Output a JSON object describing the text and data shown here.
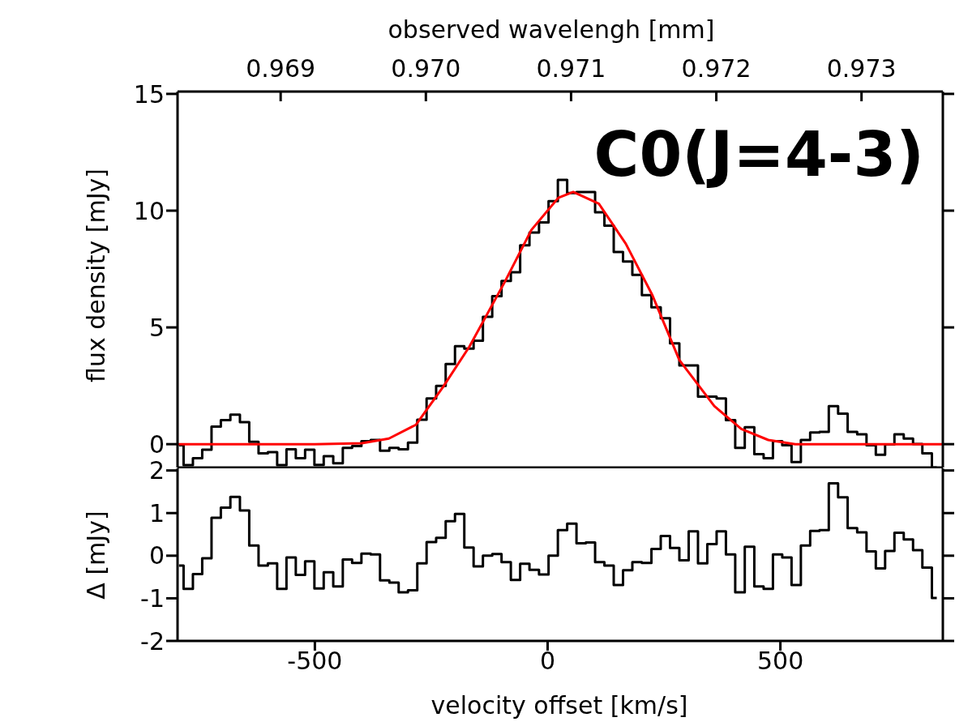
{
  "chart_data": [
    {
      "type": "step",
      "ylabel": "flux density [mJy]",
      "x2label": "observed wavelengh [mm]",
      "annotations": [
        "C0(J=4-3)"
      ],
      "x": [
        -792,
        -772,
        -752,
        -732,
        -712,
        -692,
        -671,
        -651,
        -631,
        -611,
        -591,
        -571,
        -551,
        -531,
        -511,
        -491,
        -471,
        -450,
        -430,
        -410,
        -390,
        -370,
        -350,
        -330,
        -310,
        -290,
        -270,
        -250,
        -229,
        -209,
        -189,
        -169,
        -149,
        -129,
        -109,
        -89,
        -69,
        -49,
        -29,
        -8,
        12,
        32,
        52,
        72,
        92,
        112,
        132,
        152,
        172,
        192,
        213,
        233,
        253,
        273,
        293,
        313,
        333,
        353,
        373,
        393,
        413,
        434,
        454,
        474,
        494,
        514,
        534,
        554,
        574,
        594,
        614,
        634,
        655,
        675,
        695,
        715,
        735,
        755,
        775,
        795,
        815,
        836
      ],
      "series": [
        {
          "color": "#000000",
          "values": [
            -0.05,
            -0.9,
            -0.6,
            -0.24,
            0.75,
            1.03,
            1.26,
            0.94,
            0.1,
            -0.39,
            -0.34,
            -0.9,
            -0.22,
            -0.6,
            -0.24,
            -0.89,
            -0.51,
            -0.82,
            -0.16,
            -0.08,
            0.13,
            0.18,
            -0.28,
            -0.16,
            -0.22,
            0.07,
            1.05,
            1.96,
            2.5,
            3.43,
            4.2,
            4.09,
            4.43,
            5.45,
            6.34,
            6.99,
            7.36,
            8.52,
            9.06,
            9.5,
            10.41,
            11.32,
            10.75,
            10.8,
            10.8,
            9.93,
            9.36,
            8.23,
            7.82,
            7.25,
            6.38,
            5.86,
            5.39,
            4.32,
            3.37,
            3.37,
            2.04,
            2.04,
            1.96,
            1.03,
            -0.16,
            0.73,
            -0.43,
            -0.6,
            0.13,
            -0.05,
            -0.77,
            0.18,
            0.5,
            0.53,
            1.63,
            1.31,
            0.53,
            0.42,
            -0.05,
            -0.45,
            -0.01,
            0.42,
            0.24,
            0.01,
            -0.39,
            -1.0
          ]
        },
        {
          "type": "line",
          "color": "#ff0000",
          "x": [
            -795,
            -500,
            -399,
            -341,
            -283,
            -225,
            -168,
            -92,
            -35,
            23,
            55,
            110,
            168,
            225,
            283,
            358,
            416,
            474,
            532,
            600,
            849
          ],
          "values": [
            0,
            0,
            0.04,
            0.24,
            0.83,
            2.44,
            4.18,
            6.95,
            9.17,
            10.55,
            10.8,
            10.3,
            8.58,
            6.38,
            3.6,
            1.63,
            0.65,
            0.18,
            0,
            0,
            0
          ]
        }
      ],
      "xlim": [
        -795,
        849
      ],
      "xticks": [
        -500,
        0,
        500
      ],
      "ylim": [
        -1.0,
        15.1
      ],
      "yticks": [
        0,
        5,
        10,
        15
      ],
      "x2lim": [
        0.96829,
        0.97356
      ],
      "x2ticks": [
        {
          "value": 0.969,
          "label": "0.969"
        },
        {
          "value": 0.97,
          "label": "0.970"
        },
        {
          "value": 0.971,
          "label": "0.971"
        },
        {
          "value": 0.972,
          "label": "0.972"
        },
        {
          "value": 0.973,
          "label": "0.973"
        }
      ],
      "tick_labels": "y"
    },
    {
      "type": "step",
      "xlabel": "velocity offset [km/s]",
      "ylabel": "Δ [mJy]",
      "x": [
        -792,
        -772,
        -752,
        -732,
        -712,
        -692,
        -671,
        -651,
        -631,
        -611,
        -591,
        -571,
        -551,
        -531,
        -511,
        -491,
        -471,
        -450,
        -430,
        -410,
        -390,
        -370,
        -350,
        -330,
        -310,
        -290,
        -270,
        -250,
        -229,
        -209,
        -189,
        -169,
        -149,
        -129,
        -109,
        -89,
        -69,
        -49,
        -29,
        -8,
        12,
        32,
        52,
        72,
        92,
        112,
        132,
        152,
        172,
        192,
        213,
        233,
        253,
        273,
        293,
        313,
        333,
        353,
        373,
        393,
        413,
        434,
        454,
        474,
        494,
        514,
        534,
        554,
        574,
        594,
        614,
        634,
        655,
        675,
        695,
        715,
        735,
        755,
        775,
        795,
        815,
        836
      ],
      "series": [
        {
          "color": "#000000",
          "values": [
            -0.23,
            -0.78,
            -0.43,
            -0.06,
            0.89,
            1.13,
            1.38,
            1.06,
            0.24,
            -0.23,
            -0.18,
            -0.78,
            -0.04,
            -0.45,
            -0.13,
            -0.77,
            -0.39,
            -0.72,
            -0.09,
            -0.17,
            0.05,
            0.03,
            -0.58,
            -0.63,
            -0.86,
            -0.81,
            -0.18,
            0.32,
            0.42,
            0.81,
            0.98,
            0.19,
            -0.25,
            0,
            0.04,
            -0.15,
            -0.57,
            -0.19,
            -0.33,
            -0.44,
            0,
            0.6,
            0.75,
            0.29,
            0.31,
            -0.15,
            -0.23,
            -0.69,
            -0.34,
            -0.15,
            -0.17,
            0.16,
            0.46,
            0.18,
            -0.11,
            0.57,
            -0.18,
            0.27,
            0.57,
            0.03,
            -0.86,
            0.21,
            -0.72,
            -0.78,
            0.03,
            -0.04,
            -0.69,
            0.24,
            0.58,
            0.6,
            1.7,
            1.37,
            0.65,
            0.55,
            0.1,
            -0.3,
            0.11,
            0.54,
            0.38,
            0.13,
            -0.28,
            -0.99
          ]
        }
      ],
      "xlim": [
        -795,
        849
      ],
      "xticks": [
        -500,
        0,
        500
      ],
      "ylim": [
        -2,
        2.05
      ],
      "yticks": [
        -2,
        -1,
        0,
        1,
        2
      ]
    }
  ]
}
